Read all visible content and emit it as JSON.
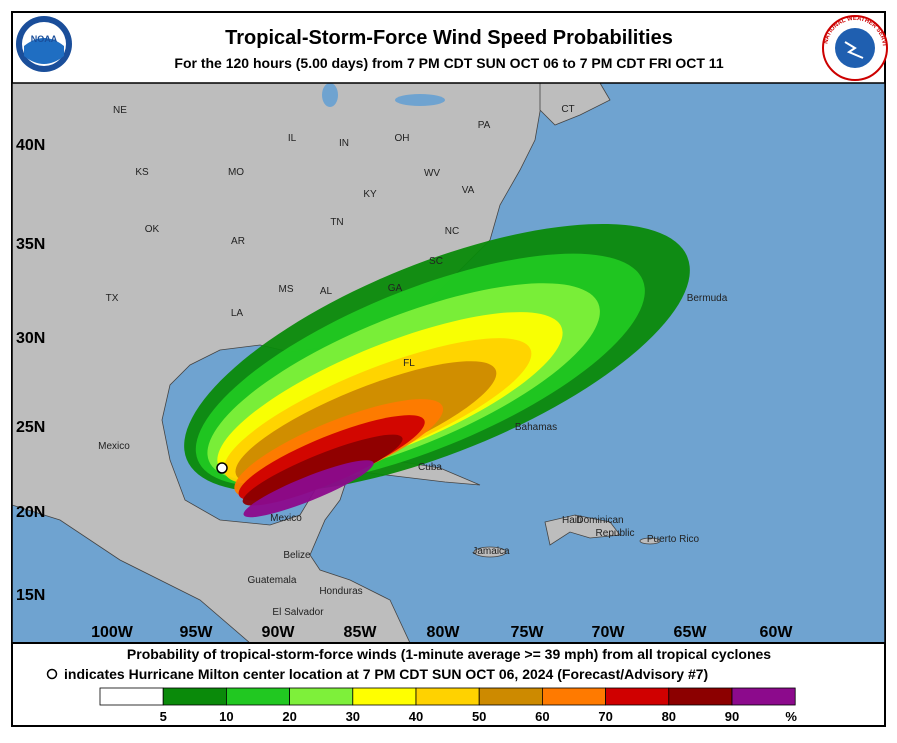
{
  "header": {
    "title": "Tropical-Storm-Force Wind Speed Probabilities",
    "subtitle": "For the 120 hours (5.00 days) from 7 PM CDT SUN OCT 06 to 7 PM CDT FRI OCT 11"
  },
  "logos": {
    "noaa": "NOAA",
    "nws": "NATIONAL WEATHER SERVICE"
  },
  "map": {
    "lat_labels": [
      "40N",
      "35N",
      "30N",
      "25N",
      "20N",
      "15N"
    ],
    "lon_labels": [
      "100W",
      "95W",
      "90W",
      "85W",
      "80W",
      "75W",
      "70W",
      "65W",
      "60W"
    ],
    "place_labels": [
      "NE",
      "IL",
      "IN",
      "OH",
      "PA",
      "CT",
      "KS",
      "MO",
      "WV",
      "VA",
      "KY",
      "OK",
      "AR",
      "TN",
      "NC",
      "SC",
      "TX",
      "MS",
      "AL",
      "GA",
      "LA",
      "FL",
      "Bermuda",
      "Mexico",
      "Bahamas",
      "Cuba",
      "Haiti",
      "Dominican",
      "Republic",
      "Puerto Rico",
      "Jamaica",
      "Mexico",
      "Belize",
      "Guatemala",
      "Honduras",
      "El Salvador"
    ]
  },
  "footer": {
    "line1": "Probability of tropical-storm-force winds (1-minute average >= 39 mph) from all tropical cyclones",
    "line2": "indicates Hurricane Milton center location at 7 PM CDT SUN OCT 06, 2024 (Forecast/Advisory #7)"
  },
  "legend": {
    "values": [
      5,
      10,
      20,
      30,
      40,
      50,
      60,
      70,
      80,
      90
    ],
    "unit": "%",
    "colors": [
      "#ffffff",
      "#0a8a0a",
      "#21c821",
      "#7ef03a",
      "#ffff00",
      "#ffd200",
      "#cd8a00",
      "#ff7a00",
      "#d00000",
      "#8c0000",
      "#8c0a8c"
    ]
  }
}
